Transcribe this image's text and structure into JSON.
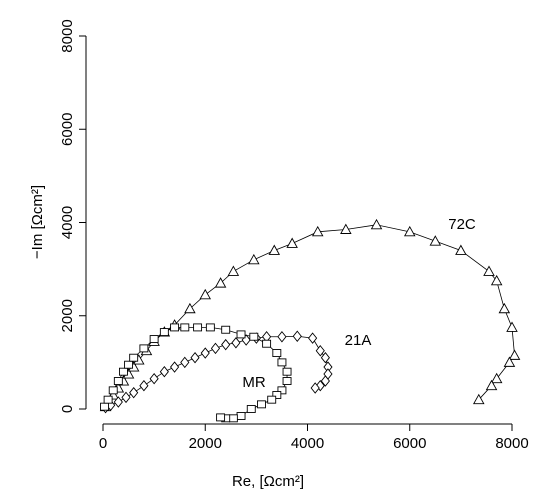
{
  "chart_data": {
    "type": "line",
    "x_label": "Re, [Ωcm²]",
    "y_label": "−Im [Ωcm²]",
    "xlim": [
      0,
      8000
    ],
    "xticks": [
      0,
      2000,
      4000,
      6000,
      8000
    ],
    "ylim": [
      0,
      8000
    ],
    "yticks": [
      0,
      2000,
      4000,
      6000,
      8000
    ],
    "grid": false,
    "series": [
      {
        "name": "72C",
        "color": "#000000",
        "marker": "triangle",
        "x": [
          50,
          100,
          200,
          300,
          400,
          500,
          600,
          700,
          850,
          1000,
          1200,
          1400,
          1700,
          2000,
          2300,
          2550,
          2950,
          3350,
          3700,
          4200,
          4750,
          5350,
          6000,
          6500,
          7000,
          7550,
          7700,
          7850,
          8000,
          8050,
          7950,
          7700,
          7600,
          7350
        ],
        "values": [
          50,
          150,
          300,
          450,
          600,
          750,
          900,
          1050,
          1250,
          1450,
          1650,
          1800,
          2150,
          2450,
          2700,
          2950,
          3200,
          3400,
          3550,
          3800,
          3850,
          3950,
          3800,
          3600,
          3400,
          2950,
          2750,
          2150,
          1750,
          1150,
          1000,
          650,
          500,
          200
        ]
      },
      {
        "name": "21A",
        "color": "#000000",
        "marker": "diamond",
        "x": [
          50,
          150,
          300,
          450,
          600,
          800,
          1000,
          1200,
          1400,
          1600,
          1800,
          2000,
          2200,
          2400,
          2600,
          2800,
          3000,
          3200,
          3500,
          3800,
          4100,
          4250,
          4350,
          4400,
          4400,
          4350,
          4250,
          4150
        ],
        "values": [
          30,
          80,
          150,
          250,
          350,
          500,
          650,
          800,
          900,
          1000,
          1100,
          1200,
          1300,
          1380,
          1420,
          1480,
          1520,
          1550,
          1550,
          1560,
          1520,
          1250,
          1100,
          900,
          750,
          600,
          500,
          450
        ]
      },
      {
        "name": "MR",
        "color": "#000000",
        "marker": "square",
        "x": [
          30,
          100,
          200,
          300,
          400,
          500,
          600,
          800,
          1000,
          1200,
          1400,
          1600,
          1850,
          2100,
          2400,
          2700,
          2950,
          3200,
          3400,
          3500,
          3600,
          3600,
          3500,
          3400,
          3300,
          3100,
          2900,
          2700,
          2550,
          2400,
          2300
        ],
        "values": [
          50,
          200,
          400,
          600,
          800,
          950,
          1100,
          1300,
          1500,
          1650,
          1750,
          1750,
          1750,
          1750,
          1700,
          1600,
          1550,
          1400,
          1200,
          1000,
          800,
          600,
          400,
          300,
          200,
          100,
          0,
          -150,
          -200,
          -200,
          -180
        ]
      }
    ]
  }
}
